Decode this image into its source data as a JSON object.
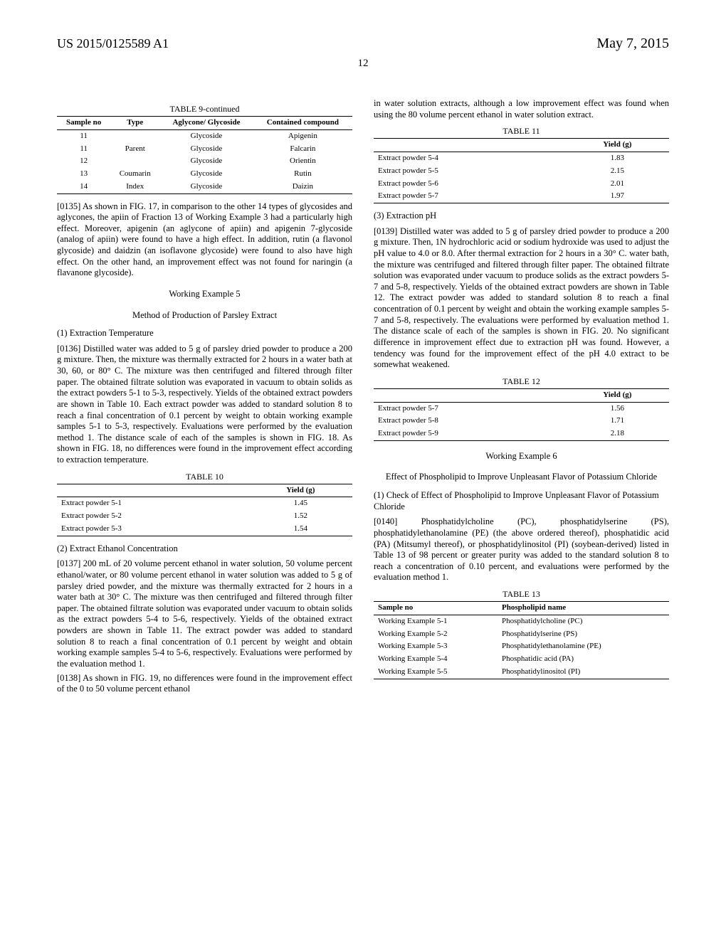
{
  "header": {
    "patent_no": "US 2015/0125589 A1",
    "date": "May 7, 2015"
  },
  "page_no": "12",
  "col1": {
    "table9_title": "TABLE 9-continued",
    "table9_headers": [
      "Sample no",
      "Type",
      "Aglycone/\nGlycoside",
      "Contained compound"
    ],
    "table9_rows": [
      [
        "11",
        "",
        "Glycoside",
        "Apigenin"
      ],
      [
        "11",
        "Parent",
        "Glycoside",
        "Falcarin"
      ],
      [
        "12",
        "",
        "Glycoside",
        "Orientin"
      ],
      [
        "13",
        "Coumarin",
        "Glycoside",
        "Rutin"
      ],
      [
        "14",
        "Index",
        "Glycoside",
        "Daizin"
      ]
    ],
    "para0135": "[0135]    As shown in FIG. 17, in comparison to the other 14 types of glycosides and aglycones, the apiin of Fraction 13 of Working Example 3 had a particularly high effect. Moreover, apigenin (an aglycone of apiin) and apigenin 7-glycoside (analog of apiin) were found to have a high effect. In addition, rutin (a flavonol glycoside) and daidzin (an isoflavone glycoside) were found to also have high effect. On the other hand, an improvement effect was not found for naringin (a flavanone glycoside).",
    "we5_title": "Working Example 5",
    "we5_subtitle": "Method of Production of Parsley Extract",
    "sec1_title": "(1) Extraction Temperature",
    "para0136": "[0136]    Distilled water was added to 5 g of parsley dried powder to produce a 200 g mixture. Then, the mixture was thermally extracted for 2 hours in a water bath at 30, 60, or 80° C. The mixture was then centrifuged and filtered through filter paper. The obtained filtrate solution was evaporated in vacuum to obtain solids as the extract powders 5-1 to 5-3, respectively. Yields of the obtained extract powders are shown in Table 10. Each extract powder was added to standard solution 8 to reach a final concentration of 0.1 percent by weight to obtain working example samples 5-1 to 5-3, respectively. Evaluations were performed by the evaluation method 1. The distance scale of each of the samples is shown in FIG. 18. As shown in FIG. 18, no differences were found in the improvement effect according to extraction temperature.",
    "table10_title": "TABLE 10",
    "table10_header": "Yield (g)",
    "table10_rows": [
      [
        "Extract powder 5-1",
        "1.45"
      ],
      [
        "Extract powder 5-2",
        "1.52"
      ],
      [
        "Extract powder 5-3",
        "1.54"
      ]
    ],
    "sec2_title": "(2) Extract Ethanol Concentration",
    "para0137": "[0137]    200 mL of 20 volume percent ethanol in water solution, 50 volume percent ethanol/water, or 80 volume percent ethanol in water solution was added to 5 g of parsley dried powder, and the mixture was thermally extracted for 2 hours in a water bath at 30° C. The mixture was then centrifuged and filtered through filter paper. The obtained filtrate solution was evaporated under vacuum to obtain solids as the extract powders 5-4 to 5-6, respectively. Yields of the obtained extract powders are shown in Table 11. The extract powder was added to standard solution 8 to reach a final concentration of 0.1 percent by weight and obtain working example samples 5-4 to 5-6, respectively. Evaluations were performed by the evaluation method 1.",
    "para0138": "[0138]    As shown in FIG. 19, no differences were found in the improvement effect of the 0 to 50 volume percent ethanol"
  },
  "col2": {
    "para_cont": "in water solution extracts, although a low improvement effect was found when using the 80 volume percent ethanol in water solution extract.",
    "table11_title": "TABLE 11",
    "table11_header": "Yield (g)",
    "table11_rows": [
      [
        "Extract powder 5-4",
        "1.83"
      ],
      [
        "Extract powder 5-5",
        "2.15"
      ],
      [
        "Extract powder 5-6",
        "2.01"
      ],
      [
        "Extract powder 5-7",
        "1.97"
      ]
    ],
    "sec3_title": "(3) Extraction pH",
    "para0139": "[0139]    Distilled water was added to 5 g of parsley dried powder to produce a 200 g mixture. Then, 1N hydrochloric acid or sodium hydroxide was used to adjust the pH value to 4.0 or 8.0. After thermal extraction for 2 hours in a 30° C. water bath, the mixture was centrifuged and filtered through filter paper. The obtained filtrate solution was evaporated under vacuum to produce solids as the extract powders 5-7 and 5-8, respectively. Yields of the obtained extract powders are shown in Table 12. The extract powder was added to standard solution 8 to reach a final concentration of 0.1 percent by weight and obtain the working example samples 5-7 and 5-8, respectively. The evaluations were performed by evaluation method 1. The distance scale of each of the samples is shown in FIG. 20. No significant difference in improvement effect due to extraction pH was found. However, a tendency was found for the improvement effect of the pH 4.0 extract to be somewhat weakened.",
    "table12_title": "TABLE 12",
    "table12_header": "Yield (g)",
    "table12_rows": [
      [
        "Extract powder 5-7",
        "1.56"
      ],
      [
        "Extract powder 5-8",
        "1.71"
      ],
      [
        "Extract powder 5-9",
        "2.18"
      ]
    ],
    "we6_title": "Working Example 6",
    "we6_subtitle": "Effect of Phospholipid to Improve Unpleasant Flavor of Potassium Chloride",
    "sec4_title": "(1) Check of Effect of Phospholipid to Improve Unpleasant Flavor of Potassium Chloride",
    "para0140": "[0140]    Phosphatidylcholine (PC), phosphatidylserine (PS), phosphatidylethanolamine (PE) (the above ordered thereof), phosphatidic acid (PA) (Mitsumyl thereof), or phosphatidylinositol (PI) (soybean-derived) listed in Table 13 of 98 percent or greater purity was added to the standard solution 8 to reach a concentration of 0.10 percent, and evaluations were performed by the evaluation method 1.",
    "table13_title": "TABLE 13",
    "table13_headers": [
      "Sample no",
      "Phospholipid name"
    ],
    "table13_rows": [
      [
        "Working Example 5-1",
        "Phosphatidylcholine (PC)"
      ],
      [
        "Working Example 5-2",
        "Phosphatidylserine (PS)"
      ],
      [
        "Working Example 5-3",
        "Phosphatidylethanolamine (PE)"
      ],
      [
        "Working Example 5-4",
        "Phosphatidic acid (PA)"
      ],
      [
        "Working Example 5-5",
        "Phosphatidylinositol (PI)"
      ]
    ]
  }
}
